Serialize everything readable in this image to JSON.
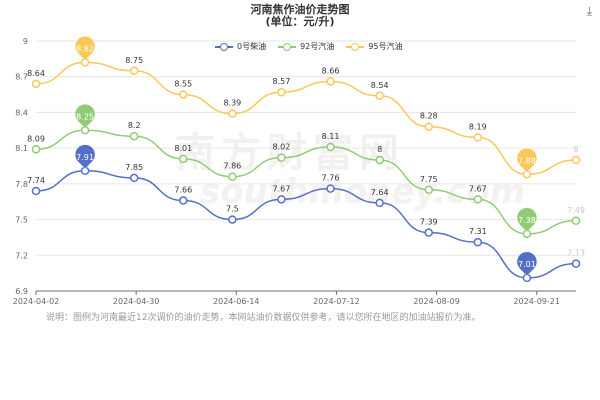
{
  "header": {
    "title_line1": "河南焦作油价走势图",
    "title_line2": "(单位：元/升)",
    "download_icon": "download-icon"
  },
  "watermark": {
    "text": "南方财富网",
    "sub": "southmoney.com"
  },
  "note": "说明：图例为河南最近12次调价的油价走势，本网站油价数据仅供参考，请以您所在地区的加油站报价为准。",
  "chart_data": {
    "type": "line",
    "title": "河南焦作油价走势图",
    "subtitle": "(单位：元/升)",
    "ylim": [
      6.9,
      9.0
    ],
    "yticks": [
      6.9,
      7.2,
      7.5,
      7.8,
      8.1,
      8.4,
      8.7,
      9
    ],
    "x_tick_labels": [
      "2024-04-02",
      "2024-04-30",
      "2024-06-14",
      "2024-07-12",
      "2024-08-09",
      "2024-09-21"
    ],
    "legend_position": "top",
    "grid": true,
    "series": [
      {
        "name": "0号柴油",
        "color": "#5470c6",
        "values": [
          7.74,
          7.91,
          7.85,
          7.66,
          7.5,
          7.67,
          7.76,
          7.64,
          7.39,
          7.31,
          7.01,
          7.13
        ],
        "max_index": 1,
        "min_index": 10
      },
      {
        "name": "92号汽油",
        "color": "#91cc75",
        "values": [
          8.09,
          8.25,
          8.2,
          8.01,
          7.86,
          8.02,
          8.11,
          8,
          7.75,
          7.67,
          7.38,
          7.49
        ],
        "max_index": 1,
        "min_index": 10
      },
      {
        "name": "95号汽油",
        "color": "#fac858",
        "values": [
          8.64,
          8.82,
          8.75,
          8.55,
          8.39,
          8.57,
          8.66,
          8.54,
          8.28,
          8.19,
          7.88,
          8
        ],
        "max_index": 1,
        "min_index": 10
      }
    ]
  }
}
